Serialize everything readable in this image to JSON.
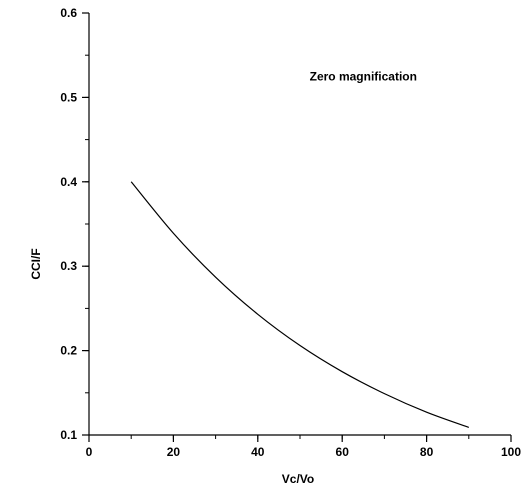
{
  "chart_data": {
    "type": "line",
    "title": "",
    "xlabel": "Vc/Vo",
    "ylabel": "CCI/F",
    "xlim": [
      0,
      100
    ],
    "ylim": [
      0.1,
      0.6
    ],
    "x_ticks": [
      0,
      20,
      40,
      60,
      80,
      100
    ],
    "x_tick_labels": [
      "0",
      "20",
      "40",
      "60",
      "80",
      "100"
    ],
    "y_ticks": [
      0.1,
      0.2,
      0.3,
      0.4,
      0.5,
      0.6
    ],
    "y_tick_labels": [
      "0.1",
      "0.2",
      "0.3",
      "0.4",
      "0.5",
      "0.6"
    ],
    "x_minor_step": 10,
    "y_minor_step": 0.05,
    "grid": false,
    "annotations": [
      {
        "text": "Zero magnification",
        "x": 65,
        "y": 0.52
      }
    ],
    "series": [
      {
        "x": [
          10,
          20,
          30,
          40,
          50,
          60,
          70,
          80,
          90
        ],
        "y": [
          0.4,
          0.339,
          0.287,
          0.243,
          0.206,
          0.175,
          0.149,
          0.127,
          0.109
        ]
      }
    ]
  }
}
